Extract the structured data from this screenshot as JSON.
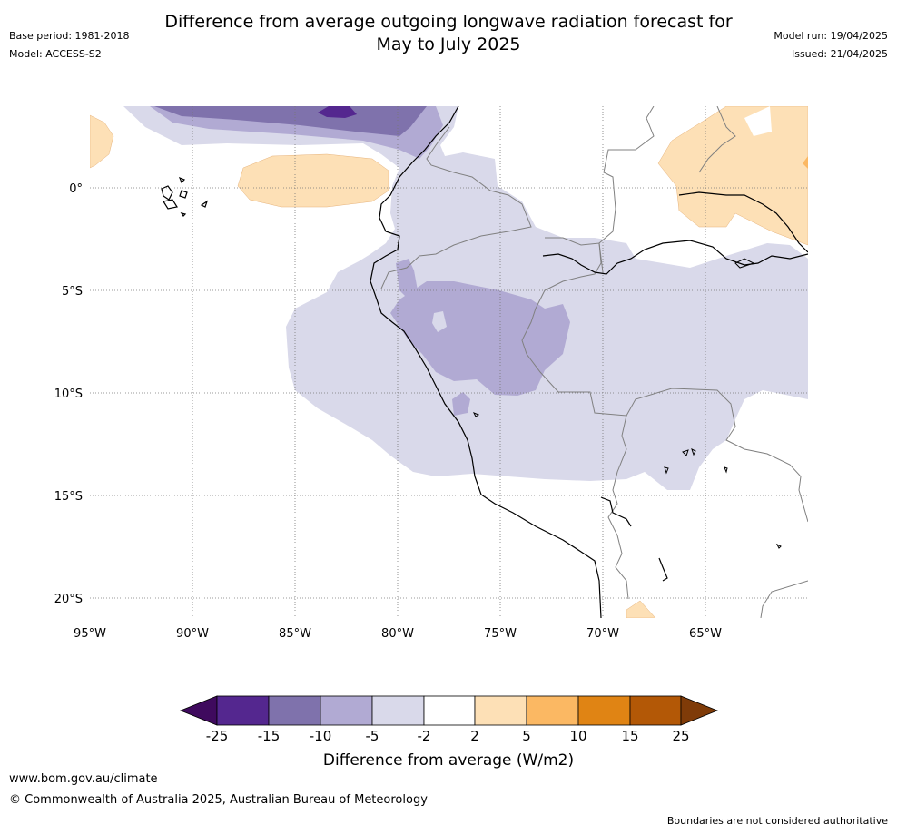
{
  "header": {
    "title_line1": "Difference from average outgoing longwave radiation forecast for",
    "title_line2": "May to July 2025",
    "base_period": "Base period: 1981-2018",
    "model": "Model: ACCESS-S2",
    "model_run": "Model run: 19/04/2025",
    "issued": "Issued: 21/04/2025"
  },
  "map": {
    "lon_ticks": [
      "95°W",
      "90°W",
      "85°W",
      "80°W",
      "75°W",
      "70°W",
      "65°W"
    ],
    "lat_ticks": [
      "0°",
      "5°S",
      "10°S",
      "15°S",
      "20°S"
    ]
  },
  "colorbar": {
    "label": "Difference from average (W/m2)",
    "ticks": [
      "-25",
      "-15",
      "-10",
      "-5",
      "-2",
      "2",
      "5",
      "10",
      "15",
      "25"
    ],
    "colors": [
      "#3f0a5e",
      "#54278f",
      "#7f72ac",
      "#b1aad3",
      "#d9d9ea",
      "#ffffff",
      "#fde0b6",
      "#fbb863",
      "#e08414",
      "#b35806",
      "#7f3b08"
    ]
  },
  "footer": {
    "url": "www.bom.gov.au/climate",
    "copyright": "© Commonwealth of Australia 2025, Australian Bureau of Meteorology",
    "note": "Boundaries are not considered authoritative"
  }
}
